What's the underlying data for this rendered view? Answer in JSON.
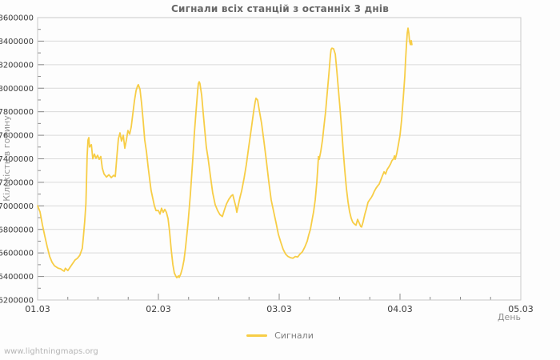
{
  "page": {
    "watermark": "www.lightningmaps.org"
  },
  "legend": {
    "label": "Сигнали",
    "color": "#f7cd46"
  },
  "colors": {
    "line": "#f7cd46",
    "grid": "#dadada",
    "frame": "#c9c9c9",
    "tick_text": "#3c3c3c",
    "title_text": "#676767"
  },
  "chart_data": {
    "type": "line",
    "title": "Сигнали всіх станцій з останніх 3 днів",
    "xlabel": "День",
    "ylabel": "Кількість в годину",
    "xlim_days": [
      0,
      4
    ],
    "x_tick_labels": [
      "01.03",
      "02.03",
      "03.03",
      "04.03",
      "05.03"
    ],
    "x_minor_step_days": 0.25,
    "ylim": [
      6200000,
      8600000
    ],
    "y_tick_step": 200000,
    "y_minor_step": 100000,
    "grid": "horizontal-only",
    "legend_position": "bottom-center",
    "series": [
      {
        "name": "Сигнали",
        "color": "#f7cd46",
        "points": [
          [
            0.0,
            7000000
          ],
          [
            0.02,
            6950000
          ],
          [
            0.04,
            6840000
          ],
          [
            0.06,
            6740000
          ],
          [
            0.08,
            6650000
          ],
          [
            0.1,
            6570000
          ],
          [
            0.12,
            6520000
          ],
          [
            0.14,
            6490000
          ],
          [
            0.17,
            6470000
          ],
          [
            0.19,
            6465000
          ],
          [
            0.21,
            6450000
          ],
          [
            0.22,
            6445000
          ],
          [
            0.23,
            6470000
          ],
          [
            0.25,
            6450000
          ],
          [
            0.27,
            6480000
          ],
          [
            0.29,
            6510000
          ],
          [
            0.31,
            6540000
          ],
          [
            0.33,
            6555000
          ],
          [
            0.35,
            6580000
          ],
          [
            0.37,
            6640000
          ],
          [
            0.38,
            6750000
          ],
          [
            0.39,
            6870000
          ],
          [
            0.4,
            7020000
          ],
          [
            0.405,
            7230000
          ],
          [
            0.41,
            7420000
          ],
          [
            0.417,
            7560000
          ],
          [
            0.424,
            7580000
          ],
          [
            0.43,
            7500000
          ],
          [
            0.445,
            7520000
          ],
          [
            0.457,
            7400000
          ],
          [
            0.47,
            7440000
          ],
          [
            0.483,
            7405000
          ],
          [
            0.497,
            7430000
          ],
          [
            0.51,
            7395000
          ],
          [
            0.523,
            7420000
          ],
          [
            0.536,
            7320000
          ],
          [
            0.55,
            7270000
          ],
          [
            0.57,
            7245000
          ],
          [
            0.59,
            7265000
          ],
          [
            0.61,
            7240000
          ],
          [
            0.63,
            7260000
          ],
          [
            0.643,
            7250000
          ],
          [
            0.656,
            7420000
          ],
          [
            0.669,
            7570000
          ],
          [
            0.682,
            7620000
          ],
          [
            0.695,
            7550000
          ],
          [
            0.709,
            7600000
          ],
          [
            0.722,
            7490000
          ],
          [
            0.735,
            7560000
          ],
          [
            0.748,
            7640000
          ],
          [
            0.762,
            7610000
          ],
          [
            0.775,
            7670000
          ],
          [
            0.788,
            7780000
          ],
          [
            0.801,
            7890000
          ],
          [
            0.815,
            7980000
          ],
          [
            0.828,
            8020000
          ],
          [
            0.834,
            8030000
          ],
          [
            0.848,
            7990000
          ],
          [
            0.861,
            7870000
          ],
          [
            0.874,
            7720000
          ],
          [
            0.887,
            7560000
          ],
          [
            0.901,
            7460000
          ],
          [
            0.914,
            7340000
          ],
          [
            0.927,
            7230000
          ],
          [
            0.94,
            7130000
          ],
          [
            0.954,
            7060000
          ],
          [
            0.967,
            7000000
          ],
          [
            0.98,
            6960000
          ],
          [
            1.0,
            6960000
          ],
          [
            1.013,
            6930000
          ],
          [
            1.026,
            6980000
          ],
          [
            1.04,
            6945000
          ],
          [
            1.053,
            6970000
          ],
          [
            1.066,
            6945000
          ],
          [
            1.08,
            6890000
          ],
          [
            1.093,
            6780000
          ],
          [
            1.106,
            6630000
          ],
          [
            1.12,
            6500000
          ],
          [
            1.132,
            6430000
          ],
          [
            1.146,
            6400000
          ],
          [
            1.152,
            6390000
          ],
          [
            1.166,
            6405000
          ],
          [
            1.172,
            6392000
          ],
          [
            1.185,
            6420000
          ],
          [
            1.199,
            6470000
          ],
          [
            1.212,
            6540000
          ],
          [
            1.225,
            6650000
          ],
          [
            1.245,
            6850000
          ],
          [
            1.265,
            7100000
          ],
          [
            1.285,
            7400000
          ],
          [
            1.298,
            7620000
          ],
          [
            1.311,
            7800000
          ],
          [
            1.325,
            7980000
          ],
          [
            1.331,
            8040000
          ],
          [
            1.338,
            8055000
          ],
          [
            1.344,
            8040000
          ],
          [
            1.358,
            7940000
          ],
          [
            1.371,
            7790000
          ],
          [
            1.384,
            7640000
          ],
          [
            1.397,
            7500000
          ],
          [
            1.411,
            7405000
          ],
          [
            1.43,
            7260000
          ],
          [
            1.45,
            7110000
          ],
          [
            1.47,
            7010000
          ],
          [
            1.49,
            6960000
          ],
          [
            1.51,
            6925000
          ],
          [
            1.53,
            6910000
          ],
          [
            1.543,
            6955000
          ],
          [
            1.563,
            7015000
          ],
          [
            1.583,
            7055000
          ],
          [
            1.603,
            7085000
          ],
          [
            1.616,
            7095000
          ],
          [
            1.629,
            7040000
          ],
          [
            1.642,
            6990000
          ],
          [
            1.649,
            6945000
          ],
          [
            1.662,
            7010000
          ],
          [
            1.675,
            7070000
          ],
          [
            1.689,
            7125000
          ],
          [
            1.709,
            7235000
          ],
          [
            1.728,
            7350000
          ],
          [
            1.748,
            7500000
          ],
          [
            1.768,
            7650000
          ],
          [
            1.788,
            7800000
          ],
          [
            1.801,
            7885000
          ],
          [
            1.808,
            7915000
          ],
          [
            1.821,
            7900000
          ],
          [
            1.834,
            7820000
          ],
          [
            1.854,
            7700000
          ],
          [
            1.874,
            7545000
          ],
          [
            1.894,
            7380000
          ],
          [
            1.914,
            7205000
          ],
          [
            1.934,
            7050000
          ],
          [
            1.954,
            6950000
          ],
          [
            1.974,
            6855000
          ],
          [
            1.993,
            6760000
          ],
          [
            2.013,
            6690000
          ],
          [
            2.033,
            6630000
          ],
          [
            2.053,
            6590000
          ],
          [
            2.073,
            6570000
          ],
          [
            2.093,
            6560000
          ],
          [
            2.113,
            6555000
          ],
          [
            2.133,
            6570000
          ],
          [
            2.152,
            6565000
          ],
          [
            2.172,
            6590000
          ],
          [
            2.192,
            6610000
          ],
          [
            2.212,
            6650000
          ],
          [
            2.232,
            6700000
          ],
          [
            2.245,
            6755000
          ],
          [
            2.258,
            6800000
          ],
          [
            2.272,
            6880000
          ],
          [
            2.285,
            6950000
          ],
          [
            2.298,
            7050000
          ],
          [
            2.311,
            7200000
          ],
          [
            2.318,
            7300000
          ],
          [
            2.325,
            7420000
          ],
          [
            2.331,
            7395000
          ],
          [
            2.344,
            7460000
          ],
          [
            2.358,
            7560000
          ],
          [
            2.371,
            7680000
          ],
          [
            2.384,
            7800000
          ],
          [
            2.397,
            7950000
          ],
          [
            2.411,
            8120000
          ],
          [
            2.424,
            8280000
          ],
          [
            2.43,
            8330000
          ],
          [
            2.437,
            8340000
          ],
          [
            2.45,
            8335000
          ],
          [
            2.464,
            8290000
          ],
          [
            2.477,
            8150000
          ],
          [
            2.49,
            7990000
          ],
          [
            2.503,
            7830000
          ],
          [
            2.517,
            7650000
          ],
          [
            2.53,
            7470000
          ],
          [
            2.543,
            7300000
          ],
          [
            2.556,
            7150000
          ],
          [
            2.57,
            7030000
          ],
          [
            2.583,
            6950000
          ],
          [
            2.596,
            6895000
          ],
          [
            2.609,
            6860000
          ],
          [
            2.623,
            6845000
          ],
          [
            2.636,
            6835000
          ],
          [
            2.649,
            6885000
          ],
          [
            2.662,
            6855000
          ],
          [
            2.675,
            6825000
          ],
          [
            2.682,
            6820000
          ],
          [
            2.695,
            6865000
          ],
          [
            2.709,
            6930000
          ],
          [
            2.722,
            6975000
          ],
          [
            2.735,
            7030000
          ],
          [
            2.748,
            7050000
          ],
          [
            2.762,
            7070000
          ],
          [
            2.775,
            7095000
          ],
          [
            2.788,
            7125000
          ],
          [
            2.801,
            7150000
          ],
          [
            2.815,
            7170000
          ],
          [
            2.828,
            7185000
          ],
          [
            2.841,
            7220000
          ],
          [
            2.854,
            7255000
          ],
          [
            2.868,
            7290000
          ],
          [
            2.881,
            7270000
          ],
          [
            2.894,
            7310000
          ],
          [
            2.907,
            7330000
          ],
          [
            2.921,
            7355000
          ],
          [
            2.934,
            7385000
          ],
          [
            2.947,
            7400000
          ],
          [
            2.954,
            7425000
          ],
          [
            2.96,
            7395000
          ],
          [
            2.974,
            7450000
          ],
          [
            2.987,
            7520000
          ],
          [
            3.0,
            7600000
          ],
          [
            3.013,
            7730000
          ],
          [
            3.026,
            7900000
          ],
          [
            3.04,
            8100000
          ],
          [
            3.046,
            8230000
          ],
          [
            3.053,
            8360000
          ],
          [
            3.06,
            8470000
          ],
          [
            3.066,
            8510000
          ],
          [
            3.073,
            8470000
          ],
          [
            3.079,
            8400000
          ],
          [
            3.086,
            8370000
          ],
          [
            3.093,
            8405000
          ],
          [
            3.099,
            8370000
          ]
        ]
      }
    ]
  }
}
